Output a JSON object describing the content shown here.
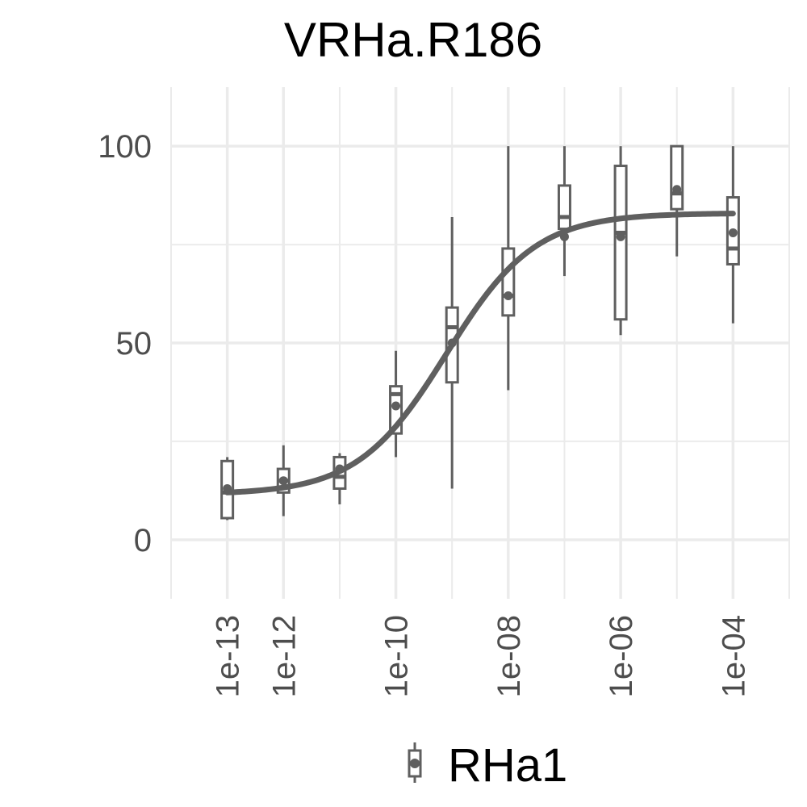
{
  "chart_data": {
    "type": "box",
    "title": "VRHa.R186",
    "x_scale": "log10",
    "xlim": [
      1e-14,
      0.001
    ],
    "ylim": [
      -15,
      115
    ],
    "y_ticks": [
      0,
      50,
      100
    ],
    "y_tick_labels": [
      "0",
      "50",
      "100"
    ],
    "x_ticks": [
      1e-13,
      1e-12,
      1e-10,
      1e-08,
      1e-06,
      0.0001
    ],
    "x_tick_labels": [
      "1e-13",
      "1e-12",
      "1e-10",
      "1e-08",
      "1e-06",
      "1e-04"
    ],
    "x_tick_label_orientation": "vertical",
    "grid": true,
    "legend_position": "bottom",
    "legend": [
      {
        "label": "RHa1",
        "symbol": "boxplot"
      }
    ],
    "colors": {
      "series": "#5f5f5f",
      "grid": "#ebebeb",
      "axis_text": "#4d4d4d"
    },
    "boxes": [
      {
        "x": 1e-13,
        "min": 5,
        "q1": 5.5,
        "median": 12,
        "q3": 20,
        "max": 21,
        "mean": 13
      },
      {
        "x": 1e-12,
        "min": 6,
        "q1": 12,
        "median": 15,
        "q3": 18,
        "max": 24,
        "mean": 15
      },
      {
        "x": 1e-11,
        "min": 9,
        "q1": 13,
        "median": 16,
        "q3": 21,
        "max": 22,
        "mean": 18
      },
      {
        "x": 1e-10,
        "min": 21,
        "q1": 27,
        "median": 37,
        "q3": 39,
        "max": 48,
        "mean": 34
      },
      {
        "x": 1e-09,
        "min": 13,
        "q1": 40,
        "median": 54,
        "q3": 59,
        "max": 82,
        "mean": 50
      },
      {
        "x": 1e-08,
        "min": 38,
        "q1": 57,
        "median": 62,
        "q3": 74,
        "max": 100,
        "mean": 62
      },
      {
        "x": 1e-07,
        "min": 67,
        "q1": 79,
        "median": 82,
        "q3": 90,
        "max": 100,
        "mean": 77
      },
      {
        "x": 1e-06,
        "min": 52,
        "q1": 56,
        "median": 78,
        "q3": 95,
        "max": 100,
        "mean": 77
      },
      {
        "x": 1e-05,
        "min": 72,
        "q1": 84,
        "median": 88,
        "q3": 100,
        "max": 100,
        "mean": 89
      },
      {
        "x": 0.0001,
        "min": 55,
        "q1": 70,
        "median": 74,
        "q3": 87,
        "max": 100,
        "mean": 78
      }
    ],
    "fit_curve": {
      "type": "four-parameter logistic",
      "bottom": 11.5,
      "top": 83,
      "log10_ec50": -9.1,
      "hill_slope": 0.55,
      "x_range": [
        1e-13,
        0.0001
      ]
    }
  }
}
